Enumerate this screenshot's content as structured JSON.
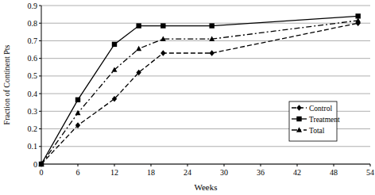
{
  "chart_data": {
    "type": "line",
    "x_label": "Weeks",
    "y_label": "Fraction of Continent Pts",
    "x": [
      0,
      6,
      12,
      16,
      20,
      28,
      52
    ],
    "series": [
      {
        "name": "Control",
        "color": "#000000",
        "line_style": "dashed",
        "marker": "diamond",
        "values": [
          0,
          0.22,
          0.37,
          0.52,
          0.63,
          0.63,
          0.8
        ]
      },
      {
        "name": "Treatment",
        "color": "#000000",
        "line_style": "solid",
        "marker": "square",
        "values": [
          0,
          0.365,
          0.68,
          0.785,
          0.785,
          0.785,
          0.84
        ]
      },
      {
        "name": "Total",
        "color": "#000000",
        "line_style": "dashdot",
        "marker": "triangle",
        "values": [
          0,
          0.29,
          0.535,
          0.655,
          0.71,
          0.71,
          0.815
        ]
      }
    ],
    "xlim": [
      0,
      54
    ],
    "xticks": [
      0,
      6,
      12,
      18,
      24,
      30,
      36,
      42,
      48,
      54
    ],
    "ylim": [
      0,
      0.9
    ],
    "yticks": [
      0,
      0.1,
      0.2,
      0.3,
      0.4,
      0.5,
      0.6,
      0.7,
      0.8,
      0.9
    ],
    "grid": true,
    "legend": "right"
  }
}
